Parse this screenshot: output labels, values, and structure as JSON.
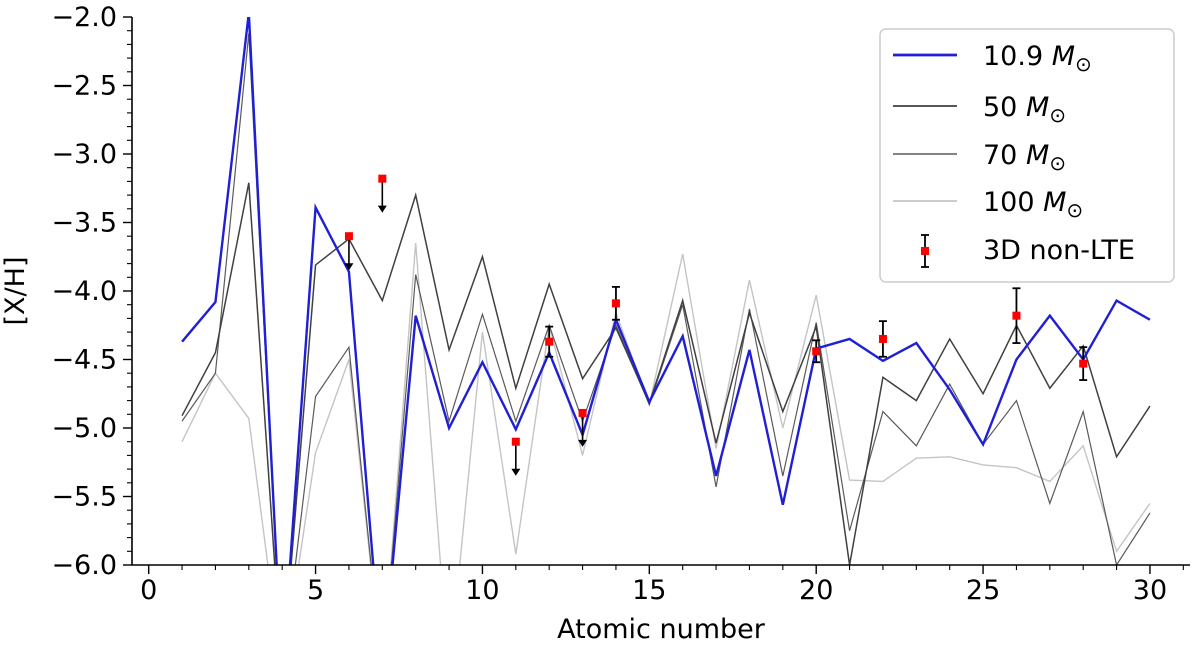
{
  "chart_data": {
    "type": "line",
    "xlabel": "Atomic number",
    "ylabel": "[X/H]",
    "xlim": [
      -0.5,
      31.2
    ],
    "ylim": [
      -6.0,
      -2.0
    ],
    "x_ticks": [
      0,
      5,
      10,
      15,
      20,
      25,
      30
    ],
    "x_tick_labels": [
      "0",
      "5",
      "10",
      "15",
      "20",
      "25",
      "30"
    ],
    "y_ticks": [
      -2.0,
      -2.5,
      -3.0,
      -3.5,
      -4.0,
      -4.5,
      -5.0,
      -5.5,
      -6.0
    ],
    "y_tick_labels": [
      "−2.0",
      "−2.5",
      "−3.0",
      "−3.5",
      "−4.0",
      "−4.5",
      "−5.0",
      "−5.5",
      "−6.0"
    ],
    "legend_position": "top-right",
    "series": [
      {
        "name": "10.9 M⊙",
        "name_main": "10.9 ",
        "name_math": "M",
        "name_sub": "⊙",
        "color": "#1f1fd6",
        "stroke_width": 2.4,
        "points": [
          [
            1,
            -4.37
          ],
          [
            2,
            -4.08
          ],
          [
            3,
            -1.97
          ],
          [
            4,
            -6.8
          ],
          [
            5,
            -3.39
          ],
          [
            6,
            -3.86
          ],
          [
            7,
            -6.8
          ],
          [
            8,
            -4.18
          ],
          [
            9,
            -5.0
          ],
          [
            10,
            -4.52
          ],
          [
            11,
            -5.01
          ],
          [
            12,
            -4.45
          ],
          [
            13,
            -5.05
          ],
          [
            14,
            -4.21
          ],
          [
            15,
            -4.81
          ],
          [
            16,
            -4.33
          ],
          [
            17,
            -5.35
          ],
          [
            18,
            -4.43
          ],
          [
            19,
            -5.56
          ],
          [
            20,
            -4.42
          ],
          [
            21,
            -4.35
          ],
          [
            22,
            -4.51
          ],
          [
            23,
            -4.38
          ],
          [
            24,
            -4.72
          ],
          [
            25,
            -5.12
          ],
          [
            26,
            -4.5
          ],
          [
            27,
            -4.18
          ],
          [
            28,
            -4.5
          ],
          [
            29,
            -4.07
          ],
          [
            30,
            -4.21
          ]
        ]
      },
      {
        "name": "50 M⊙",
        "name_main": "50 ",
        "name_math": "M",
        "name_sub": "⊙",
        "color": "#404040",
        "stroke_width": 1.5,
        "points": [
          [
            1,
            -4.91
          ],
          [
            2,
            -4.45
          ],
          [
            3,
            -3.21
          ],
          [
            4,
            -6.8
          ],
          [
            5,
            -3.81
          ],
          [
            6,
            -3.62
          ],
          [
            7,
            -4.07
          ],
          [
            8,
            -3.3
          ],
          [
            9,
            -4.43
          ],
          [
            10,
            -3.75
          ],
          [
            11,
            -4.71
          ],
          [
            12,
            -3.95
          ],
          [
            13,
            -4.64
          ],
          [
            14,
            -4.27
          ],
          [
            15,
            -4.82
          ],
          [
            16,
            -4.07
          ],
          [
            17,
            -5.11
          ],
          [
            18,
            -4.16
          ],
          [
            19,
            -4.88
          ],
          [
            20,
            -4.26
          ],
          [
            21,
            -6.0
          ],
          [
            22,
            -4.63
          ],
          [
            23,
            -4.8
          ],
          [
            24,
            -4.35
          ],
          [
            25,
            -4.75
          ],
          [
            26,
            -4.25
          ],
          [
            27,
            -4.71
          ],
          [
            28,
            -4.4
          ],
          [
            29,
            -5.21
          ],
          [
            30,
            -4.84
          ]
        ]
      },
      {
        "name": "70 M⊙",
        "name_main": "70 ",
        "name_math": "M",
        "name_sub": "⊙",
        "color": "#5a5a5a",
        "stroke_width": 1.2,
        "points": [
          [
            1,
            -4.95
          ],
          [
            2,
            -4.6
          ],
          [
            3,
            -2.12
          ],
          [
            4,
            -6.8
          ],
          [
            5,
            -4.77
          ],
          [
            6,
            -4.41
          ],
          [
            7,
            -6.8
          ],
          [
            8,
            -3.88
          ],
          [
            9,
            -4.95
          ],
          [
            10,
            -4.17
          ],
          [
            11,
            -4.95
          ],
          [
            12,
            -4.25
          ],
          [
            13,
            -4.95
          ],
          [
            14,
            -4.25
          ],
          [
            15,
            -4.83
          ],
          [
            16,
            -4.1
          ],
          [
            17,
            -5.43
          ],
          [
            18,
            -4.13
          ],
          [
            19,
            -5.35
          ],
          [
            20,
            -4.23
          ],
          [
            21,
            -5.75
          ],
          [
            22,
            -4.88
          ],
          [
            23,
            -5.13
          ],
          [
            24,
            -4.68
          ],
          [
            25,
            -5.12
          ],
          [
            26,
            -4.8
          ],
          [
            27,
            -5.55
          ],
          [
            28,
            -4.88
          ],
          [
            29,
            -6.0
          ],
          [
            30,
            -5.62
          ]
        ]
      },
      {
        "name": "100 M⊙",
        "name_main": "100 ",
        "name_math": "M",
        "name_sub": "⊙",
        "color": "#c4c4c4",
        "stroke_width": 1.4,
        "points": [
          [
            1,
            -5.1
          ],
          [
            2,
            -4.6
          ],
          [
            3,
            -4.93
          ],
          [
            4,
            -6.8
          ],
          [
            5,
            -5.18
          ],
          [
            6,
            -4.5
          ],
          [
            7,
            -6.8
          ],
          [
            8,
            -3.65
          ],
          [
            9,
            -6.8
          ],
          [
            10,
            -4.3
          ],
          [
            11,
            -5.92
          ],
          [
            12,
            -4.25
          ],
          [
            13,
            -5.2
          ],
          [
            14,
            -4.16
          ],
          [
            15,
            -4.83
          ],
          [
            16,
            -3.73
          ],
          [
            17,
            -5.15
          ],
          [
            18,
            -3.92
          ],
          [
            19,
            -5.0
          ],
          [
            20,
            -4.03
          ],
          [
            21,
            -5.38
          ],
          [
            22,
            -5.39
          ],
          [
            23,
            -5.22
          ],
          [
            24,
            -5.21
          ],
          [
            25,
            -5.27
          ],
          [
            26,
            -5.29
          ],
          [
            27,
            -5.39
          ],
          [
            28,
            -5.13
          ],
          [
            29,
            -5.9
          ],
          [
            30,
            -5.55
          ]
        ]
      }
    ],
    "observations": {
      "name": "3D non-LTE",
      "marker_color": "#ff0000",
      "errorbar_color": "#000000",
      "points": [
        {
          "x": 6,
          "y": -3.6,
          "upper_limit": true,
          "err": 0.0
        },
        {
          "x": 7,
          "y": -3.18,
          "upper_limit": true,
          "err": 0.0
        },
        {
          "x": 11,
          "y": -5.1,
          "upper_limit": true,
          "err": 0.0
        },
        {
          "x": 12,
          "y": -4.37,
          "upper_limit": false,
          "err": 0.11
        },
        {
          "x": 13,
          "y": -4.89,
          "upper_limit": true,
          "err": 0.0
        },
        {
          "x": 14,
          "y": -4.09,
          "upper_limit": false,
          "err": 0.12
        },
        {
          "x": 20,
          "y": -4.44,
          "upper_limit": false,
          "err": 0.08
        },
        {
          "x": 22,
          "y": -4.35,
          "upper_limit": false,
          "err": 0.13
        },
        {
          "x": 26,
          "y": -4.18,
          "upper_limit": false,
          "err": 0.2
        },
        {
          "x": 28,
          "y": -4.53,
          "upper_limit": false,
          "err": 0.12
        }
      ]
    }
  }
}
